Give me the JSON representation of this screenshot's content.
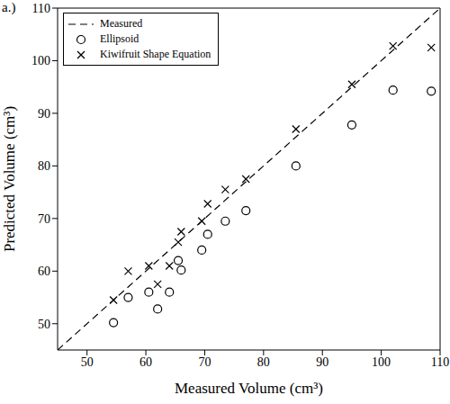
{
  "chart_data": {
    "type": "scatter",
    "title": "a.)",
    "x_label": "Measured Volume (cm³)",
    "y_label": "Predicted Volume (cm³)",
    "xlim": [
      45,
      110
    ],
    "ylim": [
      45,
      110
    ],
    "xticks": [
      50,
      60,
      70,
      80,
      90,
      100,
      110
    ],
    "yticks": [
      50,
      60,
      70,
      80,
      90,
      100,
      110
    ],
    "grid": false,
    "legend": "upper left",
    "series": [
      {
        "name": "Measured",
        "type": "line",
        "line_style": "dashed",
        "color": "#000000",
        "x": [
          45,
          110
        ],
        "values": [
          45,
          110
        ]
      },
      {
        "name": "Ellipsoid",
        "type": "scatter",
        "marker": "circle",
        "color": "#000000",
        "x": [
          54.5,
          57,
          60.5,
          62,
          64,
          65.5,
          66,
          69.5,
          70.5,
          73.5,
          77,
          85.5,
          95,
          102,
          108.5
        ],
        "values": [
          50.2,
          55,
          56,
          52.8,
          56,
          62,
          60.2,
          64,
          67,
          69.5,
          71.5,
          80,
          87.8,
          94.4,
          94.2
        ]
      },
      {
        "name": "Kiwifruit Shape Equation",
        "type": "scatter",
        "marker": "x",
        "color": "#000000",
        "x": [
          54.5,
          57,
          60.5,
          62,
          64,
          65.5,
          66,
          69.5,
          70.5,
          73.5,
          77,
          85.5,
          95,
          102,
          108.5
        ],
        "values": [
          54.5,
          60,
          61,
          57.5,
          61,
          65.5,
          67.5,
          69.5,
          72.8,
          75.5,
          77.5,
          87,
          95.5,
          102.8,
          102.5
        ]
      }
    ]
  }
}
